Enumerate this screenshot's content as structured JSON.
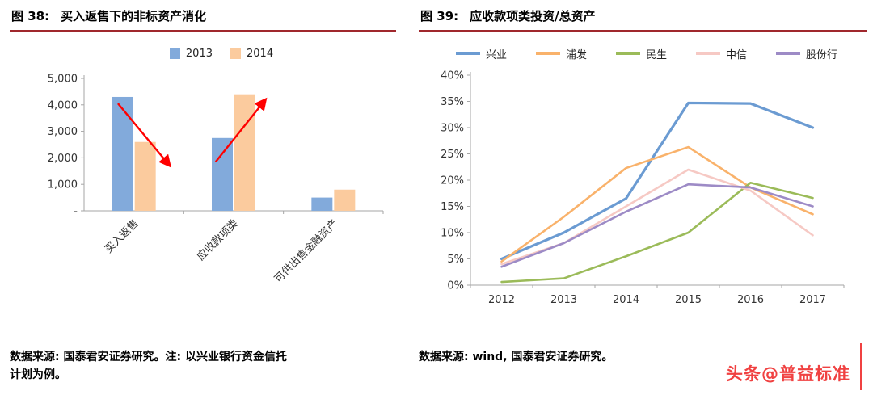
{
  "colors": {
    "accent_rule": "#A0282D",
    "axis": "#A6A6A6",
    "arrow": "#FF0000",
    "watermark": "#F04141"
  },
  "watermark": {
    "text": "头条@普益标准"
  },
  "fig38": {
    "label": "图 38:",
    "title": "买入返售下的非标资产消化",
    "source_lines": [
      "数据来源: 国泰君安证券研究。注: 以兴业银行资金信托",
      "计划为例。"
    ]
  },
  "fig39": {
    "label": "图 39:",
    "title": "应收款项类投资/总资产",
    "source_lines": [
      "数据来源: wind, 国泰君安证券研究。",
      ""
    ]
  },
  "chart_data": [
    {
      "type": "bar",
      "title": "买入返售下的非标资产消化",
      "xlabel": "",
      "ylabel": "",
      "categories": [
        "买入返售",
        "应收款项类",
        "可供出售金融资产"
      ],
      "series": [
        {
          "name": "2013",
          "color": "#82AADB",
          "values": [
            4300,
            2750,
            500
          ]
        },
        {
          "name": "2014",
          "color": "#FBCB9E",
          "values": [
            2600,
            4400,
            800
          ]
        }
      ],
      "ylim": [
        0,
        5000
      ],
      "ytick_step": 1000,
      "ytick_labels": [
        "-",
        "1,000",
        "2,000",
        "3,000",
        "4,000",
        "5,000"
      ],
      "legend_position": "top",
      "grid": false,
      "annotations": [
        {
          "type": "arrow",
          "from": {
            "cat": -0.16,
            "val": 4050
          },
          "to": {
            "cat": 0.36,
            "val": 1700
          }
        },
        {
          "type": "arrow",
          "from": {
            "cat": 0.82,
            "val": 1850
          },
          "to": {
            "cat": 1.32,
            "val": 4200
          }
        }
      ]
    },
    {
      "type": "line",
      "title": "应收款项类投资/总资产",
      "xlabel": "",
      "ylabel": "",
      "x": [
        "2012",
        "2013",
        "2014",
        "2015",
        "2016",
        "2017"
      ],
      "series": [
        {
          "name": "兴业",
          "color": "#6B9BD2",
          "width": 3.2,
          "values": [
            5.0,
            10.0,
            16.5,
            34.7,
            34.6,
            30.0
          ]
        },
        {
          "name": "浦发",
          "color": "#F9B26B",
          "width": 2.6,
          "values": [
            4.5,
            13.0,
            22.3,
            26.3,
            18.6,
            13.5
          ]
        },
        {
          "name": "民生",
          "color": "#9BBB59",
          "width": 2.6,
          "values": [
            0.6,
            1.3,
            5.5,
            10.0,
            19.5,
            16.6
          ]
        },
        {
          "name": "中信",
          "color": "#F6C9C4",
          "width": 2.6,
          "values": [
            4.0,
            8.0,
            15.0,
            22.0,
            18.0,
            9.5
          ]
        },
        {
          "name": "股份行",
          "color": "#9D8BC6",
          "width": 2.6,
          "values": [
            3.5,
            8.0,
            14.0,
            19.2,
            18.6,
            15.0
          ]
        }
      ],
      "ylim": [
        0,
        40
      ],
      "ytick_step": 5,
      "ytick_suffix": "%",
      "legend_position": "top",
      "grid": false
    }
  ]
}
